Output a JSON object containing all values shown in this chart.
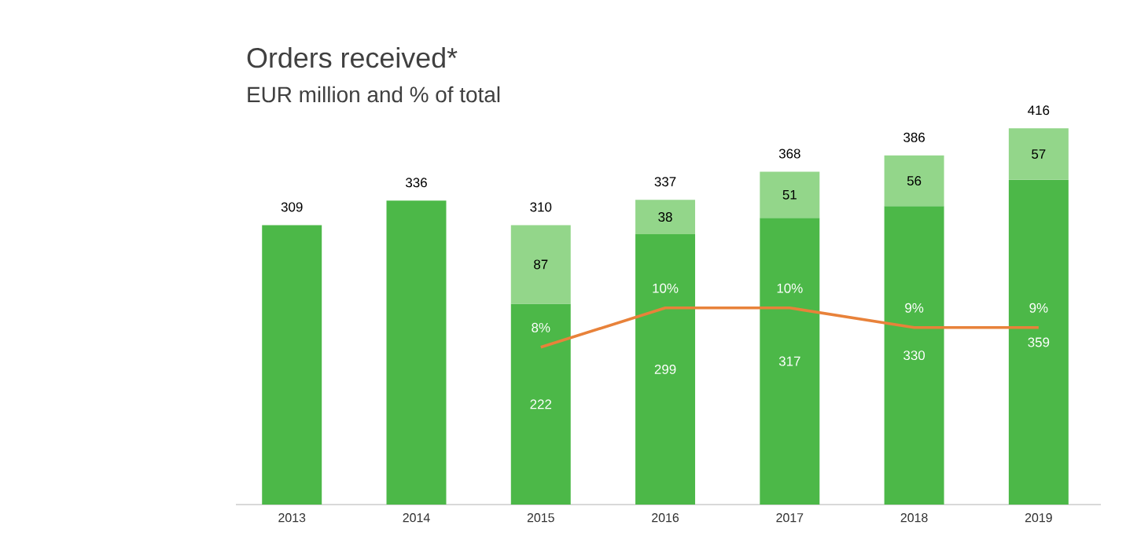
{
  "chart_data": {
    "type": "bar",
    "stacked": true,
    "title": "Orders received*",
    "subtitle": "EUR million and % of total",
    "categories": [
      "2013",
      "2014",
      "2015",
      "2016",
      "2017",
      "2018",
      "2019"
    ],
    "series": [
      {
        "color": "#4cb848",
        "values": [
          309,
          336,
          222,
          299,
          317,
          330,
          359
        ],
        "value_labels": [
          null,
          null,
          "222",
          "299",
          "317",
          "330",
          "359"
        ]
      },
      {
        "color": "#93d68a",
        "values": [
          null,
          null,
          87,
          38,
          51,
          56,
          57
        ],
        "value_labels": [
          null,
          null,
          "87",
          "38",
          "51",
          "56",
          "57"
        ]
      },
      {
        "type": "line",
        "axis": "y2",
        "color": "#e8823a",
        "values": [
          null,
          null,
          8,
          10,
          10,
          9,
          9
        ],
        "value_labels": [
          null,
          null,
          "8%",
          "10%",
          "10%",
          "9%",
          "9%"
        ]
      }
    ],
    "totals": [
      "309",
      "336",
      "310",
      "337",
      "368",
      "386",
      "416"
    ],
    "tick_labels": "x"
  }
}
